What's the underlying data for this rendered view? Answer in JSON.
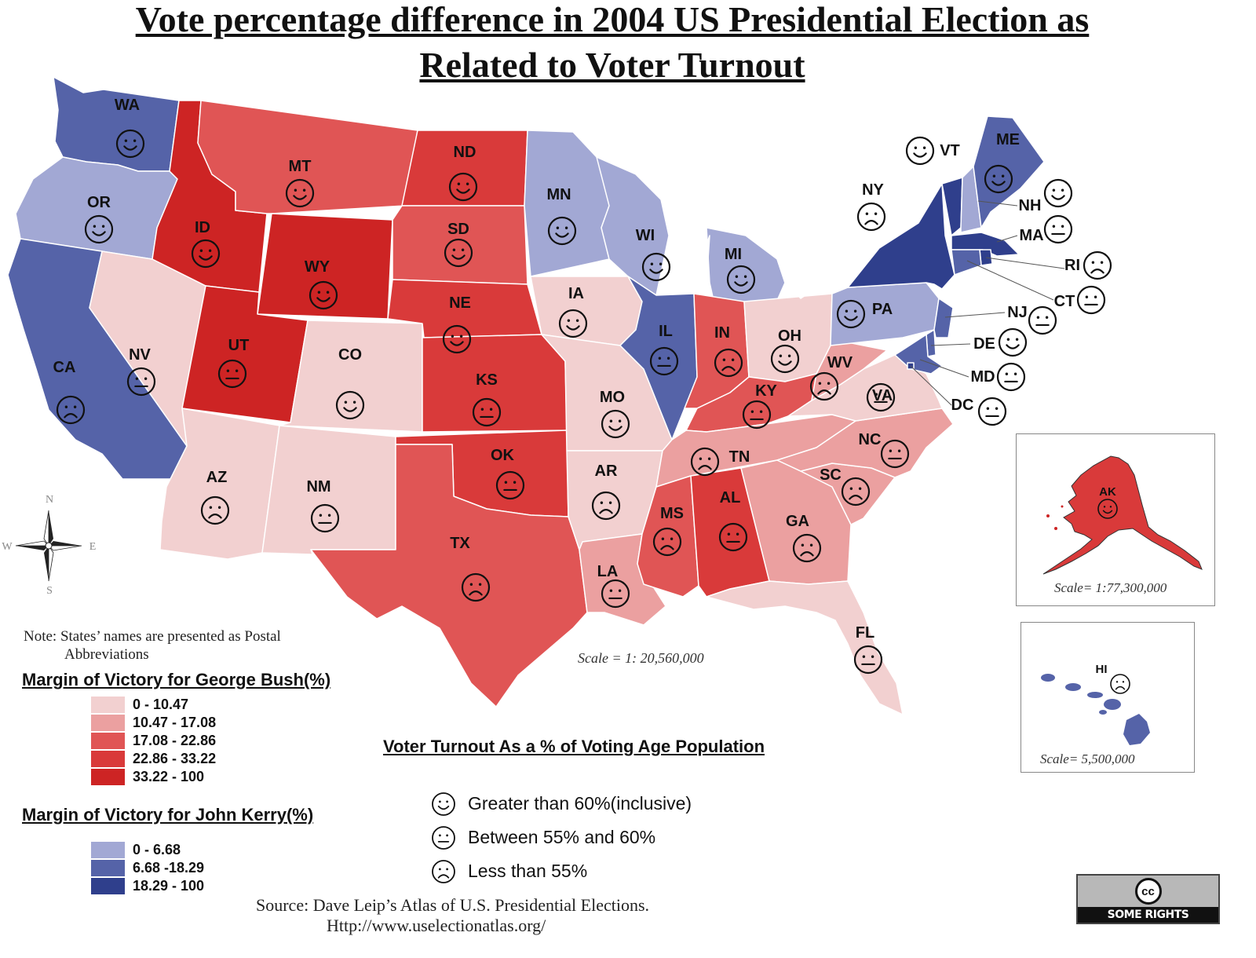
{
  "title": {
    "line1": "Vote percentage difference in 2004 US Presidential Election as",
    "line2": "Related to Voter Turnout"
  },
  "colors": {
    "bush": [
      "#f2d0d0",
      "#eba0a0",
      "#e05555",
      "#d93a3a",
      "#cd2424"
    ],
    "kerry": [
      "#a2a8d4",
      "#5563a8",
      "#2f3f8c"
    ]
  },
  "legend_bush": {
    "title": "Margin of Victory for George Bush(%)",
    "ranges": [
      "0 - 10.47",
      "10.47 - 17.08",
      "17.08 - 22.86",
      "22.86 - 33.22",
      "33.22 - 100"
    ]
  },
  "legend_kerry": {
    "title": "Margin of Victory for John Kerry(%)",
    "ranges": [
      "0 - 6.68",
      "6.68 -18.29",
      "18.29 - 100"
    ]
  },
  "turnout_legend": {
    "title": "Voter Turnout As a % of Voting Age Population",
    "items": [
      {
        "icon": "smile-face-icon",
        "label": "Greater than 60%(inclusive)"
      },
      {
        "icon": "neutral-face-icon",
        "label": "Between 55% and 60%"
      },
      {
        "icon": "frown-face-icon",
        "label": "Less than 55%"
      }
    ]
  },
  "note": {
    "line1": "Note: States’ names are presented as Postal",
    "line2": "Abbreviations"
  },
  "source": {
    "line1": "Source: Dave Leip’s Atlas of U.S. Presidential Elections.",
    "line2": "Http://www.uselectionatlas.org/"
  },
  "scales": {
    "main": "Scale = 1: 20,560,000",
    "alaska": "Scale= 1:77,300,000",
    "hawaii": "Scale= 5,500,000"
  },
  "compass": {
    "n": "N",
    "s": "S",
    "e": "E",
    "w": "W"
  },
  "license": {
    "symbol": "cc",
    "text": "SOME RIGHTS RESERVED"
  },
  "states": [
    {
      "abbr": "WA",
      "winner": "kerry",
      "tier": 2,
      "turnout": "high"
    },
    {
      "abbr": "OR",
      "winner": "kerry",
      "tier": 1,
      "turnout": "high"
    },
    {
      "abbr": "CA",
      "winner": "kerry",
      "tier": 2,
      "turnout": "low"
    },
    {
      "abbr": "NV",
      "winner": "bush",
      "tier": 1,
      "turnout": "mid"
    },
    {
      "abbr": "ID",
      "winner": "bush",
      "tier": 5,
      "turnout": "high"
    },
    {
      "abbr": "MT",
      "winner": "bush",
      "tier": 3,
      "turnout": "high"
    },
    {
      "abbr": "WY",
      "winner": "bush",
      "tier": 5,
      "turnout": "high"
    },
    {
      "abbr": "UT",
      "winner": "bush",
      "tier": 5,
      "turnout": "mid"
    },
    {
      "abbr": "CO",
      "winner": "bush",
      "tier": 1,
      "turnout": "high"
    },
    {
      "abbr": "AZ",
      "winner": "bush",
      "tier": 1,
      "turnout": "low"
    },
    {
      "abbr": "NM",
      "winner": "bush",
      "tier": 1,
      "turnout": "mid"
    },
    {
      "abbr": "ND",
      "winner": "bush",
      "tier": 4,
      "turnout": "high"
    },
    {
      "abbr": "SD",
      "winner": "bush",
      "tier": 3,
      "turnout": "high"
    },
    {
      "abbr": "NE",
      "winner": "bush",
      "tier": 4,
      "turnout": "high"
    },
    {
      "abbr": "KS",
      "winner": "bush",
      "tier": 4,
      "turnout": "mid"
    },
    {
      "abbr": "OK",
      "winner": "bush",
      "tier": 4,
      "turnout": "mid"
    },
    {
      "abbr": "TX",
      "winner": "bush",
      "tier": 3,
      "turnout": "low"
    },
    {
      "abbr": "MN",
      "winner": "kerry",
      "tier": 1,
      "turnout": "high"
    },
    {
      "abbr": "IA",
      "winner": "bush",
      "tier": 1,
      "turnout": "high"
    },
    {
      "abbr": "MO",
      "winner": "bush",
      "tier": 1,
      "turnout": "high"
    },
    {
      "abbr": "AR",
      "winner": "bush",
      "tier": 1,
      "turnout": "low"
    },
    {
      "abbr": "LA",
      "winner": "bush",
      "tier": 2,
      "turnout": "mid"
    },
    {
      "abbr": "WI",
      "winner": "kerry",
      "tier": 1,
      "turnout": "high"
    },
    {
      "abbr": "IL",
      "winner": "kerry",
      "tier": 2,
      "turnout": "mid"
    },
    {
      "abbr": "MI",
      "winner": "kerry",
      "tier": 1,
      "turnout": "high"
    },
    {
      "abbr": "IN",
      "winner": "bush",
      "tier": 3,
      "turnout": "low"
    },
    {
      "abbr": "OH",
      "winner": "bush",
      "tier": 1,
      "turnout": "high"
    },
    {
      "abbr": "KY",
      "winner": "bush",
      "tier": 3,
      "turnout": "mid"
    },
    {
      "abbr": "TN",
      "winner": "bush",
      "tier": 2,
      "turnout": "low"
    },
    {
      "abbr": "MS",
      "winner": "bush",
      "tier": 3,
      "turnout": "low"
    },
    {
      "abbr": "AL",
      "winner": "bush",
      "tier": 4,
      "turnout": "mid"
    },
    {
      "abbr": "GA",
      "winner": "bush",
      "tier": 2,
      "turnout": "low"
    },
    {
      "abbr": "FL",
      "winner": "bush",
      "tier": 1,
      "turnout": "mid"
    },
    {
      "abbr": "SC",
      "winner": "bush",
      "tier": 2,
      "turnout": "low"
    },
    {
      "abbr": "NC",
      "winner": "bush",
      "tier": 2,
      "turnout": "mid"
    },
    {
      "abbr": "VA",
      "winner": "bush",
      "tier": 1,
      "turnout": "mid"
    },
    {
      "abbr": "WV",
      "winner": "bush",
      "tier": 2,
      "turnout": "low"
    },
    {
      "abbr": "PA",
      "winner": "kerry",
      "tier": 1,
      "turnout": "high"
    },
    {
      "abbr": "NY",
      "winner": "kerry",
      "tier": 3,
      "turnout": "low"
    },
    {
      "abbr": "VT",
      "winner": "kerry",
      "tier": 3,
      "turnout": "high"
    },
    {
      "abbr": "NH",
      "winner": "kerry",
      "tier": 1,
      "turnout": "high"
    },
    {
      "abbr": "ME",
      "winner": "kerry",
      "tier": 2,
      "turnout": "high"
    },
    {
      "abbr": "MA",
      "winner": "kerry",
      "tier": 3,
      "turnout": "mid"
    },
    {
      "abbr": "RI",
      "winner": "kerry",
      "tier": 3,
      "turnout": "low"
    },
    {
      "abbr": "CT",
      "winner": "kerry",
      "tier": 2,
      "turnout": "mid"
    },
    {
      "abbr": "NJ",
      "winner": "kerry",
      "tier": 2,
      "turnout": "mid"
    },
    {
      "abbr": "DE",
      "winner": "kerry",
      "tier": 2,
      "turnout": "high"
    },
    {
      "abbr": "MD",
      "winner": "kerry",
      "tier": 2,
      "turnout": "mid"
    },
    {
      "abbr": "DC",
      "winner": "kerry",
      "tier": 3,
      "turnout": "mid"
    },
    {
      "abbr": "AK",
      "winner": "bush",
      "tier": 4,
      "turnout": "high"
    },
    {
      "abbr": "HI",
      "winner": "kerry",
      "tier": 2,
      "turnout": "low"
    }
  ]
}
